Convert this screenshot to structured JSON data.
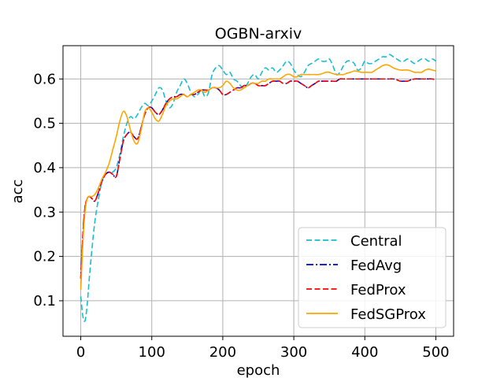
{
  "chart_data": {
    "type": "line",
    "title": "OGBN-arxiv",
    "xlabel": "epoch",
    "ylabel": "acc",
    "xlim": [
      -25,
      525
    ],
    "ylim": [
      0.02,
      0.675
    ],
    "xticks": [
      0,
      100,
      200,
      300,
      400,
      500
    ],
    "yticks": [
      0.1,
      0.2,
      0.3,
      0.4,
      0.5,
      0.6
    ],
    "xtick_labels": [
      "0",
      "100",
      "200",
      "300",
      "400",
      "500"
    ],
    "ytick_labels": [
      "0.1",
      "0.2",
      "0.3",
      "0.4",
      "0.5",
      "0.6"
    ],
    "grid": true,
    "legend_position": "lower-right",
    "series": [
      {
        "name": "Central",
        "color": "#17becf",
        "dash": "dashed",
        "x": [
          0,
          3,
          6,
          9,
          12,
          16,
          20,
          25,
          30,
          35,
          40,
          45,
          50,
          55,
          60,
          65,
          70,
          75,
          80,
          85,
          90,
          95,
          100,
          105,
          110,
          115,
          120,
          125,
          130,
          135,
          140,
          145,
          150,
          155,
          160,
          165,
          170,
          175,
          180,
          185,
          190,
          195,
          200,
          205,
          210,
          215,
          220,
          225,
          230,
          235,
          240,
          245,
          250,
          255,
          260,
          265,
          270,
          275,
          280,
          285,
          290,
          295,
          300,
          305,
          310,
          315,
          320,
          325,
          330,
          335,
          340,
          345,
          350,
          355,
          360,
          365,
          370,
          375,
          380,
          385,
          390,
          395,
          400,
          405,
          410,
          415,
          420,
          425,
          430,
          435,
          440,
          445,
          450,
          455,
          460,
          465,
          470,
          475,
          480,
          485,
          490,
          495,
          500
        ],
        "y": [
          0.11,
          0.065,
          0.055,
          0.09,
          0.15,
          0.22,
          0.28,
          0.33,
          0.37,
          0.385,
          0.39,
          0.39,
          0.4,
          0.43,
          0.47,
          0.5,
          0.515,
          0.51,
          0.52,
          0.535,
          0.545,
          0.54,
          0.55,
          0.565,
          0.58,
          0.575,
          0.55,
          0.535,
          0.545,
          0.57,
          0.585,
          0.6,
          0.59,
          0.57,
          0.56,
          0.565,
          0.575,
          0.56,
          0.57,
          0.61,
          0.625,
          0.63,
          0.62,
          0.61,
          0.615,
          0.6,
          0.595,
          0.585,
          0.58,
          0.59,
          0.605,
          0.61,
          0.6,
          0.615,
          0.625,
          0.62,
          0.625,
          0.615,
          0.62,
          0.63,
          0.64,
          0.635,
          0.62,
          0.61,
          0.605,
          0.615,
          0.63,
          0.635,
          0.64,
          0.645,
          0.64,
          0.64,
          0.645,
          0.63,
          0.61,
          0.615,
          0.63,
          0.64,
          0.64,
          0.635,
          0.62,
          0.625,
          0.64,
          0.635,
          0.635,
          0.64,
          0.645,
          0.65,
          0.65,
          0.655,
          0.65,
          0.645,
          0.64,
          0.64,
          0.645,
          0.64,
          0.635,
          0.64,
          0.645,
          0.645,
          0.64,
          0.645,
          0.64
        ]
      },
      {
        "name": "FedAvg",
        "color": "#0000cd",
        "dash": "dashdot",
        "x": [
          0,
          3,
          6,
          9,
          12,
          16,
          20,
          25,
          30,
          35,
          40,
          45,
          50,
          55,
          60,
          65,
          70,
          75,
          80,
          85,
          90,
          95,
          100,
          105,
          110,
          115,
          120,
          125,
          130,
          135,
          140,
          145,
          150,
          155,
          160,
          165,
          170,
          175,
          180,
          185,
          190,
          195,
          200,
          205,
          210,
          215,
          220,
          225,
          230,
          235,
          240,
          245,
          250,
          255,
          260,
          265,
          270,
          275,
          280,
          285,
          290,
          295,
          300,
          305,
          310,
          315,
          320,
          325,
          330,
          335,
          340,
          345,
          350,
          355,
          360,
          365,
          370,
          375,
          380,
          385,
          390,
          395,
          400,
          405,
          410,
          415,
          420,
          425,
          430,
          435,
          440,
          445,
          450,
          455,
          460,
          465,
          470,
          475,
          480,
          485,
          490,
          495,
          500
        ],
        "y": [
          0.15,
          0.25,
          0.31,
          0.33,
          0.335,
          0.33,
          0.325,
          0.345,
          0.37,
          0.385,
          0.39,
          0.385,
          0.38,
          0.42,
          0.46,
          0.475,
          0.48,
          0.47,
          0.465,
          0.49,
          0.52,
          0.535,
          0.535,
          0.525,
          0.52,
          0.53,
          0.545,
          0.555,
          0.56,
          0.56,
          0.565,
          0.565,
          0.56,
          0.565,
          0.565,
          0.57,
          0.575,
          0.575,
          0.575,
          0.58,
          0.58,
          0.575,
          0.565,
          0.565,
          0.57,
          0.575,
          0.58,
          0.58,
          0.585,
          0.585,
          0.59,
          0.59,
          0.585,
          0.585,
          0.585,
          0.59,
          0.595,
          0.595,
          0.595,
          0.59,
          0.59,
          0.595,
          0.595,
          0.595,
          0.59,
          0.585,
          0.58,
          0.585,
          0.59,
          0.595,
          0.595,
          0.595,
          0.595,
          0.595,
          0.595,
          0.6,
          0.6,
          0.6,
          0.6,
          0.6,
          0.6,
          0.6,
          0.6,
          0.6,
          0.6,
          0.6,
          0.6,
          0.6,
          0.6,
          0.6,
          0.6,
          0.598,
          0.595,
          0.595,
          0.595,
          0.598,
          0.6,
          0.6,
          0.6,
          0.6,
          0.6,
          0.6,
          0.598
        ]
      },
      {
        "name": "FedProx",
        "color": "#ff0000",
        "dash": "dashed",
        "x": [
          0,
          3,
          6,
          9,
          12,
          16,
          20,
          25,
          30,
          35,
          40,
          45,
          50,
          55,
          60,
          65,
          70,
          75,
          80,
          85,
          90,
          95,
          100,
          105,
          110,
          115,
          120,
          125,
          130,
          135,
          140,
          145,
          150,
          155,
          160,
          165,
          170,
          175,
          180,
          185,
          190,
          195,
          200,
          205,
          210,
          215,
          220,
          225,
          230,
          235,
          240,
          245,
          250,
          255,
          260,
          265,
          270,
          275,
          280,
          285,
          290,
          295,
          300,
          305,
          310,
          315,
          320,
          325,
          330,
          335,
          340,
          345,
          350,
          355,
          360,
          365,
          370,
          375,
          380,
          385,
          390,
          395,
          400,
          405,
          410,
          415,
          420,
          425,
          430,
          435,
          440,
          445,
          450,
          455,
          460,
          465,
          470,
          475,
          480,
          485,
          490,
          495,
          500
        ],
        "y": [
          0.15,
          0.25,
          0.31,
          0.33,
          0.335,
          0.33,
          0.325,
          0.345,
          0.37,
          0.385,
          0.39,
          0.385,
          0.38,
          0.42,
          0.46,
          0.475,
          0.48,
          0.47,
          0.465,
          0.49,
          0.52,
          0.535,
          0.535,
          0.525,
          0.52,
          0.53,
          0.545,
          0.555,
          0.56,
          0.56,
          0.565,
          0.565,
          0.56,
          0.565,
          0.565,
          0.57,
          0.575,
          0.575,
          0.575,
          0.58,
          0.58,
          0.575,
          0.565,
          0.565,
          0.57,
          0.575,
          0.58,
          0.58,
          0.585,
          0.585,
          0.59,
          0.59,
          0.585,
          0.585,
          0.585,
          0.59,
          0.595,
          0.595,
          0.595,
          0.59,
          0.59,
          0.595,
          0.595,
          0.595,
          0.59,
          0.585,
          0.58,
          0.585,
          0.59,
          0.595,
          0.595,
          0.595,
          0.595,
          0.595,
          0.595,
          0.6,
          0.6,
          0.6,
          0.6,
          0.6,
          0.6,
          0.6,
          0.6,
          0.6,
          0.6,
          0.6,
          0.6,
          0.6,
          0.6,
          0.6,
          0.6,
          0.598,
          0.595,
          0.595,
          0.595,
          0.598,
          0.6,
          0.6,
          0.6,
          0.6,
          0.6,
          0.6,
          0.598
        ]
      },
      {
        "name": "FedSGProx",
        "color": "#ffa500",
        "dash": "solid",
        "x": [
          0,
          3,
          6,
          9,
          12,
          16,
          20,
          25,
          30,
          35,
          40,
          45,
          50,
          55,
          60,
          65,
          70,
          75,
          80,
          85,
          90,
          95,
          100,
          105,
          110,
          115,
          120,
          125,
          130,
          135,
          140,
          145,
          150,
          155,
          160,
          165,
          170,
          175,
          180,
          185,
          190,
          195,
          200,
          205,
          210,
          215,
          220,
          225,
          230,
          235,
          240,
          245,
          250,
          255,
          260,
          265,
          270,
          275,
          280,
          285,
          290,
          295,
          300,
          305,
          310,
          315,
          320,
          325,
          330,
          335,
          340,
          345,
          350,
          355,
          360,
          365,
          370,
          375,
          380,
          385,
          390,
          395,
          400,
          405,
          410,
          415,
          420,
          425,
          430,
          435,
          440,
          445,
          450,
          455,
          460,
          465,
          470,
          475,
          480,
          485,
          490,
          495,
          500
        ],
        "y": [
          0.125,
          0.23,
          0.3,
          0.33,
          0.335,
          0.335,
          0.34,
          0.355,
          0.375,
          0.39,
          0.41,
          0.44,
          0.47,
          0.505,
          0.527,
          0.515,
          0.485,
          0.46,
          0.455,
          0.485,
          0.525,
          0.535,
          0.525,
          0.51,
          0.505,
          0.52,
          0.54,
          0.55,
          0.555,
          0.555,
          0.56,
          0.565,
          0.56,
          0.565,
          0.57,
          0.575,
          0.575,
          0.57,
          0.575,
          0.58,
          0.58,
          0.58,
          0.585,
          0.595,
          0.59,
          0.58,
          0.575,
          0.575,
          0.58,
          0.585,
          0.59,
          0.59,
          0.59,
          0.595,
          0.595,
          0.6,
          0.6,
          0.6,
          0.6,
          0.605,
          0.61,
          0.61,
          0.605,
          0.605,
          0.61,
          0.61,
          0.61,
          0.61,
          0.61,
          0.61,
          0.612,
          0.615,
          0.615,
          0.612,
          0.61,
          0.61,
          0.61,
          0.613,
          0.615,
          0.618,
          0.617,
          0.615,
          0.615,
          0.615,
          0.615,
          0.62,
          0.625,
          0.63,
          0.632,
          0.63,
          0.625,
          0.622,
          0.62,
          0.62,
          0.62,
          0.618,
          0.615,
          0.615,
          0.615,
          0.62,
          0.622,
          0.62,
          0.618
        ]
      }
    ]
  }
}
